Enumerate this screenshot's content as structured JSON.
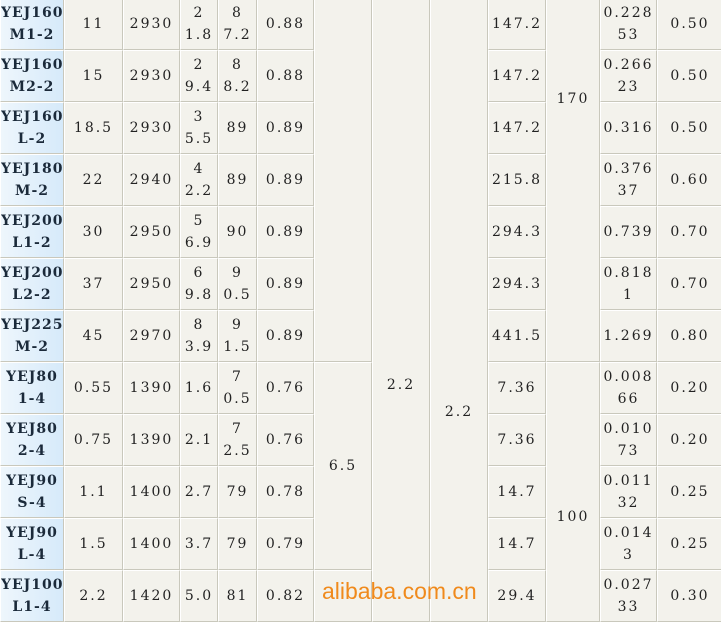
{
  "rows": [
    {
      "model": "YEJ160\nM1-2",
      "power": "11",
      "rpm": "2930",
      "current": "2\n1.8",
      "eff": "8\n7.2",
      "pf": "0.88",
      "torque": "147.2",
      "inertia": "0.228\n53",
      "weight": "0.50"
    },
    {
      "model": "YEJ160\nM2-2",
      "power": "15",
      "rpm": "2930",
      "current": "2\n9.4",
      "eff": "8\n8.2",
      "pf": "0.88",
      "torque": "147.2",
      "inertia": "0.266\n23",
      "weight": "0.50"
    },
    {
      "model": "YEJ160\nL-2",
      "power": "18.5",
      "rpm": "2930",
      "current": "3\n5.5",
      "eff": "89",
      "pf": "0.89",
      "torque": "147.2",
      "inertia": "0.316",
      "weight": "0.50"
    },
    {
      "model": "YEJ180\nM-2",
      "power": "22",
      "rpm": "2940",
      "current": "4\n2.2",
      "eff": "89",
      "pf": "0.89",
      "torque": "215.8",
      "inertia": "0.376\n37",
      "weight": "0.60"
    },
    {
      "model": "YEJ200\nL1-2",
      "power": "30",
      "rpm": "2950",
      "current": "5\n6.9",
      "eff": "90",
      "pf": "0.89",
      "torque": "294.3",
      "inertia": "0.739",
      "weight": "0.70"
    },
    {
      "model": "YEJ200\nL2-2",
      "power": "37",
      "rpm": "2950",
      "current": "6\n9.8",
      "eff": "9\n0.5",
      "pf": "0.89",
      "torque": "294.3",
      "inertia": "0.818\n1",
      "weight": "0.70"
    },
    {
      "model": "YEJ225\nM-2",
      "power": "45",
      "rpm": "2970",
      "current": "8\n3.9",
      "eff": "9\n1.5",
      "pf": "0.89",
      "torque": "441.5",
      "inertia": "1.269",
      "weight": "0.80"
    },
    {
      "model": "YEJ80\n1-4",
      "power": "0.55",
      "rpm": "1390",
      "current": "1.6",
      "eff": "7\n0.5",
      "pf": "0.76",
      "torque": "7.36",
      "inertia": "0.008\n66",
      "weight": "0.20"
    },
    {
      "model": "YEJ80\n2-4",
      "power": "0.75",
      "rpm": "1390",
      "current": "2.1",
      "eff": "7\n2.5",
      "pf": "0.76",
      "torque": "7.36",
      "inertia": "0.010\n73",
      "weight": "0.20"
    },
    {
      "model": "YEJ90\nS-4",
      "power": "1.1",
      "rpm": "1400",
      "current": "2.7",
      "eff": "79",
      "pf": "0.78",
      "torque": "14.7",
      "inertia": "0.011\n32",
      "weight": "0.25"
    },
    {
      "model": "YEJ90\nL-4",
      "power": "1.5",
      "rpm": "1400",
      "current": "3.7",
      "eff": "79",
      "pf": "0.79",
      "torque": "14.7",
      "inertia": "0.014\n3",
      "weight": "0.25"
    },
    {
      "model": "YEJ100\nL1-4",
      "power": "2.2",
      "rpm": "1420",
      "current": "5.0",
      "eff": "81",
      "pf": "0.82",
      "torque": "29.4",
      "inertia": "0.027\n33",
      "weight": "0.30"
    }
  ],
  "merged": {
    "start_ratio_4p": "6.5",
    "max_torque_ratio": "2.2",
    "start_torque_ratio": "2.2",
    "noise_2p": "170",
    "noise_4p": "100"
  },
  "watermark": "alibaba.com.cn"
}
